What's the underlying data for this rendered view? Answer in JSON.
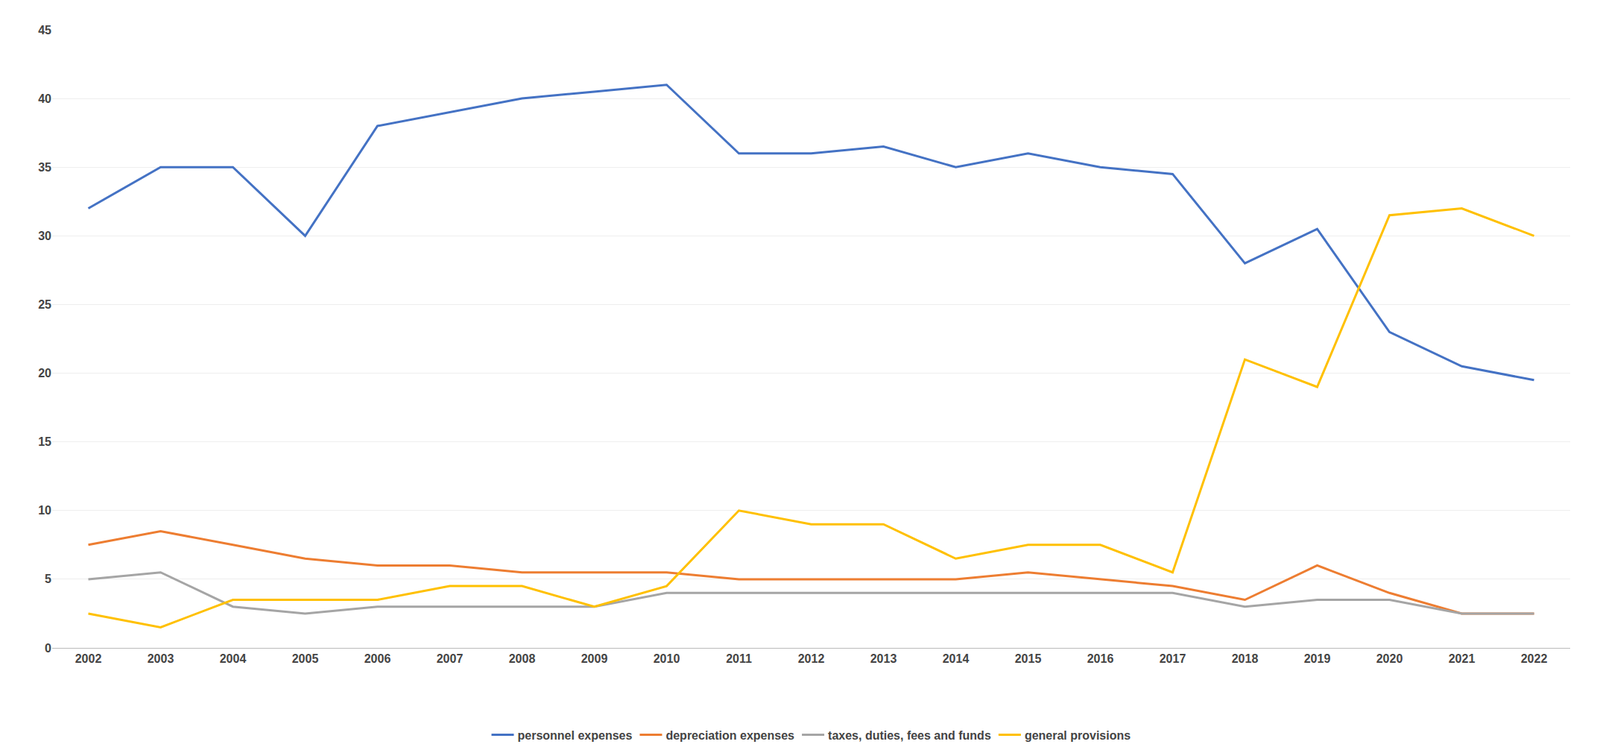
{
  "chart_data": {
    "type": "line",
    "x": [
      2002,
      2003,
      2004,
      2005,
      2006,
      2007,
      2008,
      2009,
      2010,
      2011,
      2012,
      2013,
      2014,
      2015,
      2016,
      2017,
      2018,
      2019,
      2020,
      2021,
      2022
    ],
    "series": [
      {
        "name": "personnel expenses",
        "color": "#4472C4",
        "values": [
          32.0,
          35.0,
          35.0,
          30.0,
          38.0,
          39.0,
          40.0,
          40.5,
          41.0,
          36.0,
          36.0,
          36.5,
          35.0,
          36.0,
          35.0,
          34.5,
          28.0,
          30.5,
          23.0,
          20.5,
          19.5
        ]
      },
      {
        "name": "depreciation expenses",
        "color": "#ED7D31",
        "values": [
          7.5,
          8.5,
          7.5,
          6.5,
          6.0,
          6.0,
          5.5,
          5.5,
          5.5,
          5.0,
          5.0,
          5.0,
          5.0,
          5.5,
          5.0,
          4.5,
          3.5,
          6.0,
          4.0,
          2.5,
          2.5
        ]
      },
      {
        "name": "taxes, duties, fees and funds",
        "color": "#A5A5A5",
        "values": [
          5.0,
          5.5,
          3.0,
          2.5,
          3.0,
          3.0,
          3.0,
          3.0,
          4.0,
          4.0,
          4.0,
          4.0,
          4.0,
          4.0,
          4.0,
          4.0,
          3.0,
          3.5,
          3.5,
          2.5,
          2.5
        ]
      },
      {
        "name": "general provisions",
        "color": "#FFC000",
        "values": [
          2.5,
          1.5,
          3.5,
          3.5,
          3.5,
          4.5,
          4.5,
          3.0,
          4.5,
          10.0,
          9.0,
          9.0,
          6.5,
          7.5,
          7.5,
          5.5,
          21.0,
          19.0,
          31.5,
          32.0,
          30.0
        ]
      }
    ],
    "xlim": [
      2001.5,
      2022.5
    ],
    "xticks": [
      2002,
      2003,
      2004,
      2005,
      2006,
      2007,
      2008,
      2009,
      2010,
      2011,
      2012,
      2013,
      2014,
      2015,
      2016,
      2017,
      2018,
      2019,
      2020,
      2021,
      2022
    ],
    "ylim": [
      0,
      45
    ],
    "yticks": [
      0,
      5,
      10,
      15,
      20,
      25,
      30,
      35,
      40,
      45
    ],
    "grid": "y",
    "legend": "bottom"
  }
}
